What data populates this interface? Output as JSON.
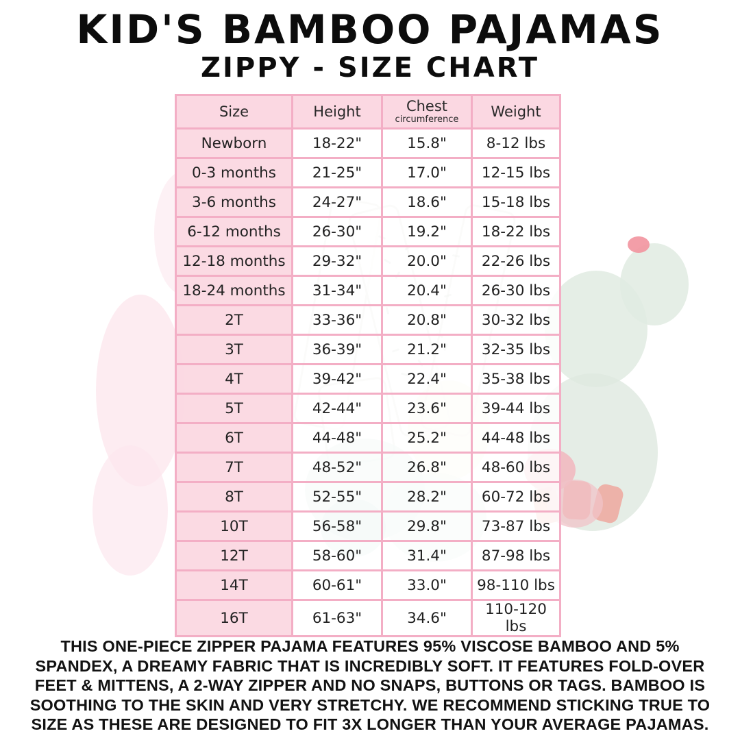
{
  "page": {
    "title": "KID'S BAMBOO PAJAMAS",
    "subtitle": "ZIPPY - SIZE CHART"
  },
  "size_chart": {
    "columns": [
      "Size",
      "Height",
      "Chest",
      "Weight"
    ],
    "chest_subscript": "circumference",
    "rows": [
      {
        "size": "Newborn",
        "height": "18-22\"",
        "chest": "15.8\"",
        "weight": "8-12 lbs"
      },
      {
        "size": "0-3 months",
        "height": "21-25\"",
        "chest": "17.0\"",
        "weight": "12-15 lbs"
      },
      {
        "size": "3-6 months",
        "height": "24-27\"",
        "chest": "18.6\"",
        "weight": "15-18 lbs"
      },
      {
        "size": "6-12 months",
        "height": "26-30\"",
        "chest": "19.2\"",
        "weight": "18-22 lbs"
      },
      {
        "size": "12-18 months",
        "height": "29-32\"",
        "chest": "20.0\"",
        "weight": "22-26 lbs"
      },
      {
        "size": "18-24 months",
        "height": "31-34\"",
        "chest": "20.4\"",
        "weight": "26-30 lbs"
      },
      {
        "size": "2T",
        "height": "33-36\"",
        "chest": "20.8\"",
        "weight": "30-32 lbs"
      },
      {
        "size": "3T",
        "height": "36-39\"",
        "chest": "21.2\"",
        "weight": "32-35 lbs"
      },
      {
        "size": "4T",
        "height": "39-42\"",
        "chest": "22.4\"",
        "weight": "35-38 lbs"
      },
      {
        "size": "5T",
        "height": "42-44\"",
        "chest": "23.6\"",
        "weight": "39-44 lbs"
      },
      {
        "size": "6T",
        "height": "44-48\"",
        "chest": "25.2\"",
        "weight": "44-48 lbs"
      },
      {
        "size": "7T",
        "height": "48-52\"",
        "chest": "26.8\"",
        "weight": "48-60 lbs"
      },
      {
        "size": "8T",
        "height": "52-55\"",
        "chest": "28.2\"",
        "weight": "60-72 lbs"
      },
      {
        "size": "10T",
        "height": "56-58\"",
        "chest": "29.8\"",
        "weight": "73-87 lbs"
      },
      {
        "size": "12T",
        "height": "58-60\"",
        "chest": "31.4\"",
        "weight": "87-98 lbs"
      },
      {
        "size": "14T",
        "height": "60-61\"",
        "chest": "33.0\"",
        "weight": "98-110 lbs"
      },
      {
        "size": "16T",
        "height": "61-63\"",
        "chest": "34.6\"",
        "weight": "110-120 lbs"
      }
    ]
  },
  "description": {
    "lines": [
      "THIS ONE-PIECE ZIPPER PAJAMA FEATURES 95% VISCOSE BAMBOO AND 5%",
      "SPANDEX, A DREAMY FABRIC THAT IS INCREDIBLY SOFT. IT FEATURES FOLD-OVER",
      "FEET & MITTENS, A 2-WAY ZIPPER AND NO SNAPS, BUTTONS OR TAGS. BAMBOO IS",
      "SOOTHING TO THE SKIN AND VERY STRETCHY. WE RECOMMEND STICKING TRUE TO",
      "SIZE AS THESE ARE DESIGNED TO FIT 3X LONGER THAN YOUR AVERAGE PAJAMAS."
    ]
  },
  "colors": {
    "cell_pink": "#fbd8e2",
    "border_pink": "#f3aec5",
    "text_black": "#121212",
    "watermark_green": "#e1ebe2",
    "watermark_teal": "#cde4dd",
    "watermark_coral": "#efa39a",
    "watermark_pink": "#fce7ee"
  }
}
